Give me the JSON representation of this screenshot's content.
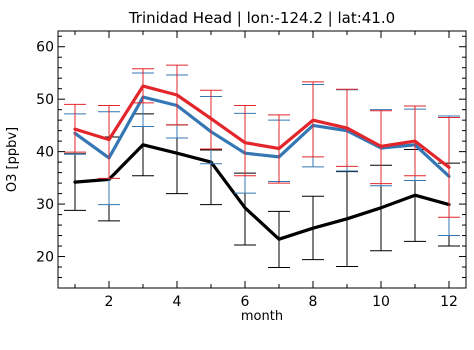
{
  "chart_data": {
    "type": "line",
    "title": "Trinidad Head | lon:-124.2 | lat:41.0",
    "xlabel": "month",
    "ylabel": "O3 [ppbv]",
    "xlim": [
      0.5,
      12.5
    ],
    "ylim": [
      14,
      63
    ],
    "x_ticks": [
      2,
      4,
      6,
      8,
      10,
      12
    ],
    "y_ticks": [
      20,
      30,
      40,
      50,
      60
    ],
    "grid": false,
    "legend": "none",
    "x": [
      1,
      2,
      3,
      4,
      5,
      6,
      7,
      8,
      9,
      10,
      11,
      12
    ],
    "series": [
      {
        "color": "#000000",
        "values": [
          34.2,
          34.7,
          41.3,
          39.7,
          38.0,
          29.3,
          23.3,
          25.4,
          27.2,
          29.3,
          31.7,
          29.9
        ],
        "err_low": [
          28.8,
          26.8,
          35.4,
          32.0,
          29.9,
          22.2,
          17.9,
          19.4,
          18.1,
          21.1,
          22.9,
          22.0
        ],
        "err_high": [
          39.6,
          42.8,
          47.2,
          45.1,
          40.3,
          35.9,
          28.6,
          31.5,
          36.2,
          37.4,
          40.4,
          37.8
        ]
      },
      {
        "color": "#3477b4",
        "values": [
          43.5,
          38.8,
          50.4,
          48.8,
          43.8,
          39.7,
          39.0,
          45.0,
          44.0,
          40.7,
          41.3,
          35.3
        ],
        "err_low": [
          39.5,
          29.9,
          44.8,
          42.6,
          37.7,
          32.1,
          34.3,
          37.1,
          36.3,
          33.5,
          34.5,
          24.0
        ],
        "err_high": [
          47.2,
          47.6,
          55.0,
          54.6,
          50.5,
          47.3,
          46.0,
          52.8,
          51.8,
          48.0,
          48.1,
          46.8
        ]
      },
      {
        "color": "#e3262b",
        "values": [
          44.3,
          42.3,
          52.5,
          50.8,
          46.3,
          41.7,
          40.6,
          46.0,
          44.5,
          41.0,
          42.0,
          37.0
        ],
        "err_low": [
          39.9,
          34.9,
          49.3,
          45.1,
          40.5,
          35.4,
          34.0,
          39.0,
          37.2,
          33.9,
          35.4,
          27.5
        ],
        "err_high": [
          49.0,
          48.8,
          55.8,
          56.5,
          51.7,
          48.8,
          47.0,
          53.3,
          51.9,
          47.8,
          48.7,
          46.5
        ]
      }
    ]
  }
}
